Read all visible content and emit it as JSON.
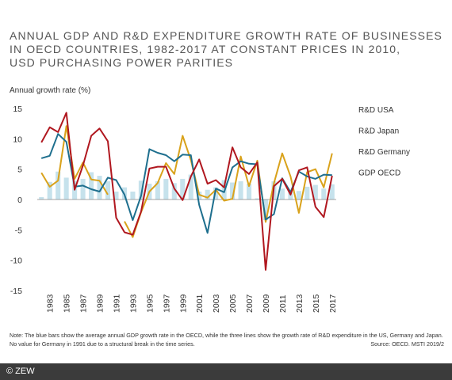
{
  "title_lines": [
    "ANNUAL GDP AND R&D EXPENDITURE GROWTH RATE OF BUSINESSES",
    "IN OECD COUNTRIES, 1982-2017 AT CONSTANT PRICES IN 2010,",
    "USD PURCHASING POWER PARITIES"
  ],
  "note_line1": "Note: The blue bars show the average annual GDP growth rate in the OECD, while the three lines show the growth rate of R&D expenditure in the US, Germany and Japan.",
  "note_line2": "No value for Germany in 1991 due to a structural break in the time series.",
  "source": "Source: OECD. MSTI 2019/2",
  "footer": "© ZEW",
  "chart_data": {
    "type": "line",
    "title": "ANNUAL GDP AND R&D EXPENDITURE GROWTH RATE OF BUSINESSES IN OECD COUNTRIES, 1982-2017 AT CONSTANT PRICES IN 2010, USD PURCHASING POWER PARITIES",
    "ylabel": "Annual growth rate (%)",
    "xlabel": "",
    "ylim": [
      -15,
      15
    ],
    "yticks": [
      15,
      10,
      5,
      0,
      -5,
      -10,
      -15
    ],
    "x": [
      1982,
      1983,
      1984,
      1985,
      1986,
      1987,
      1988,
      1989,
      1990,
      1991,
      1992,
      1993,
      1994,
      1995,
      1996,
      1997,
      1998,
      1999,
      2000,
      2001,
      2002,
      2003,
      2004,
      2005,
      2006,
      2007,
      2008,
      2009,
      2010,
      2011,
      2012,
      2013,
      2014,
      2015,
      2016,
      2017
    ],
    "xtick_labels": [
      "1983",
      "1985",
      "1987",
      "1989",
      "1991",
      "1993",
      "1995",
      "1997",
      "1999",
      "2001",
      "2003",
      "2005",
      "2007",
      "2009",
      "2011",
      "2013",
      "2015",
      "2017"
    ],
    "grid": false,
    "legend_position": "right",
    "colors": {
      "usa": "#1e6f8e",
      "japan": "#b0171f",
      "germany": "#d9a21b",
      "gdp": "#c6e2ec"
    },
    "series": [
      {
        "name": "R&D USA",
        "kind": "line",
        "color": "#1e6f8e",
        "values": [
          6.8,
          7.2,
          10.8,
          9.5,
          2.1,
          2.3,
          1.7,
          1.3,
          3.6,
          3.2,
          0.8,
          -3.4,
          0.6,
          8.3,
          7.7,
          7.3,
          6.3,
          7.4,
          7.3,
          -0.9,
          -5.5,
          1.8,
          1.2,
          5.3,
          6.3,
          5.9,
          5.8,
          -3.3,
          -2.4,
          3.5,
          1.2,
          4.6,
          3.8,
          3.4,
          4.1,
          4.0
        ]
      },
      {
        "name": "R&D Japan",
        "kind": "line",
        "color": "#b0171f",
        "values": [
          9.4,
          11.9,
          11.1,
          14.3,
          1.6,
          5.6,
          10.5,
          11.7,
          9.6,
          -3.0,
          -5.4,
          -5.8,
          -2.0,
          5.1,
          5.4,
          5.4,
          1.8,
          -0.1,
          3.8,
          6.6,
          2.6,
          3.2,
          2.0,
          8.6,
          5.3,
          4.2,
          6.1,
          -11.6,
          2.2,
          3.4,
          0.8,
          4.8,
          5.3,
          -1.2,
          -2.9,
          3.9
        ]
      },
      {
        "name": "R&D Germany",
        "kind": "line",
        "color": "#d9a21b",
        "values": [
          4.4,
          2.1,
          3.1,
          12.1,
          3.4,
          6.1,
          3.3,
          3.1,
          0.8,
          null,
          -3.6,
          -6.2,
          -2.1,
          1.3,
          2.7,
          6.0,
          4.2,
          10.5,
          6.5,
          0.8,
          0.3,
          1.6,
          -0.2,
          0.1,
          7.1,
          2.2,
          6.4,
          -3.7,
          2.7,
          7.6,
          3.8,
          -2.2,
          4.5,
          5.0,
          2.0,
          7.6
        ]
      },
      {
        "name": "GDP OECD",
        "kind": "bar",
        "color": "#c6e2ec",
        "values": [
          0.4,
          2.9,
          4.6,
          3.6,
          3.1,
          3.4,
          4.5,
          3.9,
          3.0,
          1.3,
          2.0,
          1.3,
          3.1,
          2.6,
          3.0,
          3.4,
          2.7,
          3.4,
          4.1,
          1.3,
          1.6,
          2.0,
          3.2,
          2.8,
          3.0,
          2.6,
          0.2,
          -3.4,
          3.0,
          1.8,
          1.2,
          1.4,
          2.1,
          2.4,
          1.8,
          2.5
        ]
      }
    ]
  }
}
